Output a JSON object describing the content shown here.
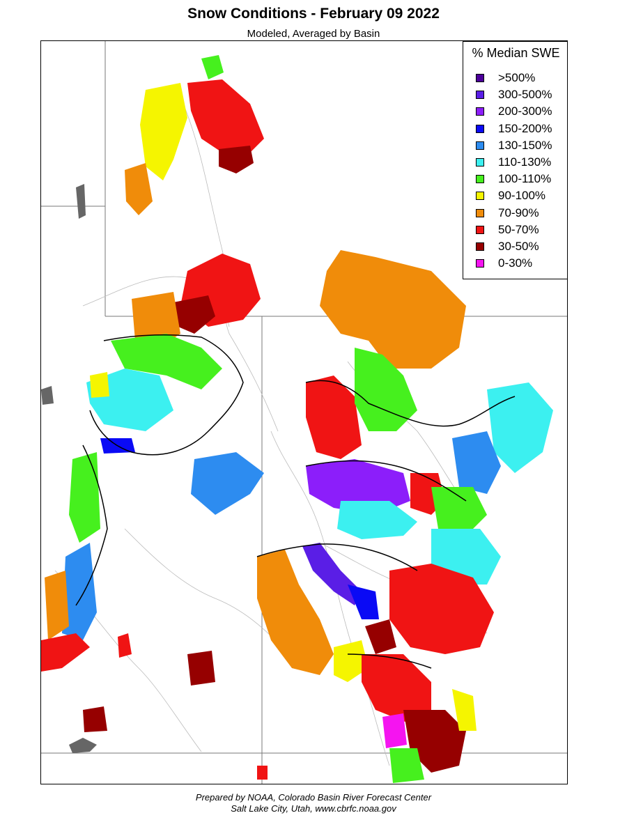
{
  "title": "Snow Conditions - February 09 2022",
  "subtitle": "Modeled, Averaged by Basin",
  "legend": {
    "title": "% Median SWE",
    "items": [
      {
        "label": ">500%",
        "color": "#4b0099"
      },
      {
        "label": "300-500%",
        "color": "#5a1ee6"
      },
      {
        "label": "200-300%",
        "color": "#8c1efa"
      },
      {
        "label": "150-200%",
        "color": "#0a0af5"
      },
      {
        "label": "130-150%",
        "color": "#2d8cf0"
      },
      {
        "label": "110-130%",
        "color": "#3cf0f0"
      },
      {
        "label": "100-110%",
        "color": "#46f01e"
      },
      {
        "label": "90-100%",
        "color": "#f5f500"
      },
      {
        "label": "70-90%",
        "color": "#f08c0a"
      },
      {
        "label": "50-70%",
        "color": "#f01414"
      },
      {
        "label": "30-50%",
        "color": "#960000"
      },
      {
        "label": "0-30%",
        "color": "#f514f0"
      }
    ]
  },
  "footer": {
    "line1": "Prepared by NOAA, Colorado Basin River Forecast Center",
    "line2": "Salt Lake City, Utah, www.cbrfc.noaa.gov"
  }
}
